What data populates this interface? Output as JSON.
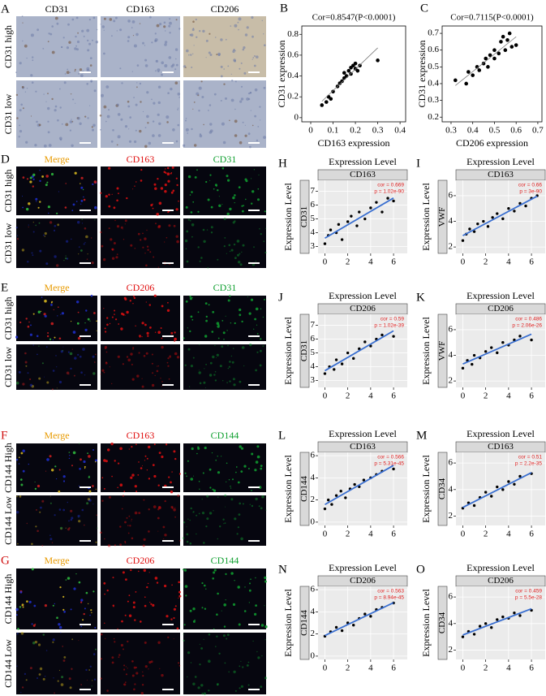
{
  "micrographs": [
    {
      "panel": "A",
      "columns": [
        "CD31",
        "CD163",
        "CD206"
      ],
      "column_colors": [
        "#000000",
        "#000000",
        "#000000"
      ],
      "rows": [
        "CD31 high",
        "CD31 low"
      ]
    },
    {
      "panel": "D",
      "columns": [
        "Merge",
        "CD163",
        "CD31"
      ],
      "column_colors": [
        "#e89a00",
        "#e01010",
        "#10a030"
      ],
      "rows": [
        "CD31 high",
        "CD31 low"
      ]
    },
    {
      "panel": "E",
      "columns": [
        "Merge",
        "CD206",
        "CD31"
      ],
      "column_colors": [
        "#e89a00",
        "#e01010",
        "#10a030"
      ],
      "rows": [
        "CD31 high",
        "CD31 low"
      ]
    },
    {
      "panel": "F",
      "panel_color": "#d01010",
      "columns": [
        "Merge",
        "CD163",
        "CD144"
      ],
      "column_colors": [
        "#e89a00",
        "#e01010",
        "#10a030"
      ],
      "rows": [
        "CD144 High",
        "CD144 Low"
      ]
    },
    {
      "panel": "G",
      "panel_color": "#d01010",
      "columns": [
        "Merge",
        "CD206",
        "CD144"
      ],
      "column_colors": [
        "#e89a00",
        "#e01010",
        "#10a030"
      ],
      "rows": [
        "CD144 High",
        "CD144 Low"
      ]
    }
  ],
  "chart_data": [
    {
      "type": "scatter",
      "panel": "B",
      "title": "Cor=0.8547(P<0.0001)",
      "x_label": "CD163 expression",
      "y_label": "CD31 expression",
      "color": "#000000",
      "x": [
        0.05,
        0.07,
        0.08,
        0.09,
        0.1,
        0.12,
        0.13,
        0.14,
        0.15,
        0.15,
        0.16,
        0.17,
        0.18,
        0.18,
        0.19,
        0.2,
        0.2,
        0.21,
        0.22,
        0.3
      ],
      "values": [
        0.12,
        0.15,
        0.2,
        0.18,
        0.25,
        0.3,
        0.33,
        0.35,
        0.38,
        0.43,
        0.4,
        0.45,
        0.42,
        0.48,
        0.5,
        0.47,
        0.52,
        0.45,
        0.5,
        0.55
      ],
      "xlim": [
        -0.04,
        0.425
      ],
      "xticks": [
        0,
        0.1,
        0.2,
        0.3,
        0.4
      ],
      "ylim": [
        -0.04,
        0.88
      ],
      "yticks": [
        0,
        0.2,
        0.4,
        0.6,
        0.8
      ]
    },
    {
      "type": "scatter",
      "panel": "C",
      "title": "Cor=0.7115(P<0.0001)",
      "x_label": "CD206 expression",
      "y_label": "CD31 expression",
      "color": "#000000",
      "x": [
        0.32,
        0.37,
        0.38,
        0.4,
        0.42,
        0.43,
        0.45,
        0.46,
        0.47,
        0.48,
        0.5,
        0.5,
        0.52,
        0.53,
        0.54,
        0.55,
        0.56,
        0.57,
        0.58,
        0.6
      ],
      "values": [
        0.42,
        0.4,
        0.47,
        0.45,
        0.5,
        0.48,
        0.52,
        0.55,
        0.5,
        0.57,
        0.55,
        0.6,
        0.58,
        0.65,
        0.68,
        0.6,
        0.66,
        0.7,
        0.62,
        0.63
      ],
      "xlim": [
        0.259,
        0.719
      ],
      "xticks": [
        0.3,
        0.4,
        0.5,
        0.6,
        0.7
      ],
      "ylim": [
        0.172,
        0.744
      ],
      "yticks": [
        0.2,
        0.3,
        0.4,
        0.5,
        0.6,
        0.7
      ]
    },
    {
      "type": "scatter",
      "panel": "H",
      "title": "Expression Level",
      "facet": "CD163",
      "y_label": "Expression Level",
      "y_strip": "CD31",
      "annotations": [
        "cor = 0.669",
        "p = 1.02e-90"
      ],
      "color": "#000000",
      "trend_color": "#3a6fd0",
      "x": [
        0,
        0.3,
        0.5,
        1,
        1.2,
        1.5,
        2,
        2.3,
        2.8,
        3,
        3.5,
        4,
        4.5,
        5,
        5.5,
        6
      ],
      "values": [
        3.2,
        3.8,
        4.2,
        4,
        4.6,
        3.5,
        4.8,
        5.2,
        4.5,
        5.5,
        5,
        5.8,
        6.2,
        5.5,
        6.5,
        6.3
      ],
      "xlim": [
        -0.6,
        7.2
      ],
      "xticks": [
        0,
        2,
        4,
        6
      ],
      "ylim": [
        2.5,
        7.8
      ],
      "yticks": [
        3,
        4,
        5,
        6,
        7
      ]
    },
    {
      "type": "scatter",
      "panel": "I",
      "title": "Expression Level",
      "facet": "CD163",
      "y_label": "Expression Level",
      "y_strip": "VWF",
      "annotations": [
        "cor = 0.66",
        "p = 3e-90"
      ],
      "color": "#000000",
      "trend_color": "#3a6fd0",
      "x": [
        0,
        0.3,
        0.6,
        1,
        1.3,
        1.8,
        2.2,
        2.6,
        3,
        3.5,
        4,
        4.5,
        5,
        5.5,
        6,
        6.5
      ],
      "values": [
        2.5,
        3,
        3.4,
        3.2,
        3.8,
        4,
        3.6,
        4.3,
        4.6,
        4.2,
        5,
        4.8,
        5.4,
        5.2,
        5.8,
        6
      ],
      "xlim": [
        -0.6,
        7.2
      ],
      "xticks": [
        0,
        2,
        4,
        6
      ],
      "ylim": [
        1.5,
        7.2
      ],
      "yticks": [
        2,
        4,
        6
      ]
    },
    {
      "type": "scatter",
      "panel": "J",
      "title": "Expression Level",
      "facet": "CD206",
      "y_label": "Expression Level",
      "y_strip": "CD31",
      "annotations": [
        "cor = 0.59",
        "p = 1.02e-39"
      ],
      "color": "#000000",
      "trend_color": "#3a6fd0",
      "x": [
        0,
        0.4,
        0.8,
        1,
        1.5,
        2,
        2.5,
        3,
        3.5,
        4,
        4.5,
        5,
        6
      ],
      "values": [
        3.5,
        4,
        3.8,
        4.5,
        4.2,
        5,
        4.6,
        5.3,
        5.8,
        5.5,
        6,
        6.3,
        6.2
      ],
      "xlim": [
        -0.6,
        7.2
      ],
      "xticks": [
        0,
        2,
        4,
        6
      ],
      "ylim": [
        2.5,
        7.8
      ],
      "yticks": [
        3,
        4,
        5,
        6,
        7
      ]
    },
    {
      "type": "scatter",
      "panel": "K",
      "title": "Expression Level",
      "facet": "CD206",
      "y_label": "Expression Level",
      "y_strip": "VWF",
      "annotations": [
        "cor = 0.486",
        "p = 2.06e-26"
      ],
      "color": "#000000",
      "trend_color": "#3a6fd0",
      "x": [
        0,
        0.4,
        0.8,
        1,
        1.5,
        2,
        2.5,
        3,
        3.5,
        4,
        4.5,
        5,
        6
      ],
      "values": [
        3,
        3.6,
        3.3,
        4,
        3.8,
        4.3,
        4.6,
        4.2,
        5,
        4.8,
        5.2,
        5.5,
        5.2
      ],
      "xlim": [
        -0.6,
        7.2
      ],
      "xticks": [
        0,
        2,
        4,
        6
      ],
      "ylim": [
        1.5,
        7.2
      ],
      "yticks": [
        2,
        4,
        6
      ]
    },
    {
      "type": "scatter",
      "panel": "L",
      "title": "Expression Level",
      "facet": "CD163",
      "y_label": "Expression Level",
      "y_strip": "CD144",
      "annotations": [
        "cor = 0.566",
        "p = 5.31e-45"
      ],
      "color": "#000000",
      "trend_color": "#3a6fd0",
      "x": [
        0,
        0.3,
        0.6,
        1,
        1.4,
        1.8,
        2.2,
        2.6,
        3,
        3.4,
        4,
        4.5,
        5,
        6
      ],
      "values": [
        1.2,
        2,
        1.6,
        2.4,
        2.8,
        2.2,
        3,
        3.4,
        3.2,
        3.8,
        4,
        4.3,
        4.6,
        4.8
      ],
      "xlim": [
        -0.6,
        7.2
      ],
      "xticks": [
        0,
        2,
        4,
        6
      ],
      "ylim": [
        -0.3,
        6.3
      ],
      "yticks": [
        0,
        2,
        4,
        6
      ]
    },
    {
      "type": "scatter",
      "panel": "M",
      "title": "Expression Level",
      "facet": "CD163",
      "y_label": "Expression Level",
      "y_strip": "CD34",
      "annotations": [
        "cor = 0.51",
        "p = 2.2e-35"
      ],
      "color": "#000000",
      "trend_color": "#3a6fd0",
      "x": [
        0,
        0.5,
        1,
        1.5,
        2,
        2.5,
        3,
        3.5,
        4,
        4.5,
        5,
        6
      ],
      "values": [
        2.6,
        3,
        2.8,
        3.4,
        3.8,
        3.5,
        4.2,
        4,
        4.6,
        4.4,
        5,
        5.2
      ],
      "xlim": [
        -0.6,
        7.2
      ],
      "xticks": [
        0,
        2,
        4,
        6
      ],
      "ylim": [
        1.3,
        6.8
      ],
      "yticks": [
        2,
        4,
        6
      ]
    },
    {
      "type": "scatter",
      "panel": "N",
      "title": "Expression Level",
      "facet": "CD206",
      "y_label": "Expression Level",
      "y_strip": "CD144",
      "annotations": [
        "cor = 0.563",
        "p = 8.94e-45"
      ],
      "color": "#000000",
      "trend_color": "#3a6fd0",
      "x": [
        0,
        0.5,
        1,
        1.5,
        2,
        2.5,
        3,
        3.5,
        4,
        4.5,
        5,
        6
      ],
      "values": [
        1.8,
        2.2,
        2.6,
        2.3,
        3,
        2.8,
        3.4,
        3.8,
        3.6,
        4.2,
        4.4,
        4.8
      ],
      "xlim": [
        -0.6,
        7.2
      ],
      "xticks": [
        0,
        2,
        4,
        6
      ],
      "ylim": [
        -0.3,
        6.3
      ],
      "yticks": [
        0,
        2,
        4,
        6
      ]
    },
    {
      "type": "scatter",
      "panel": "O",
      "title": "Expression Level",
      "facet": "CD206",
      "y_label": "Expression Level",
      "y_strip": "CD34",
      "annotations": [
        "cor = 0.459",
        "p = 5.5e-28"
      ],
      "color": "#000000",
      "trend_color": "#3a6fd0",
      "x": [
        0,
        0.5,
        1,
        1.5,
        2,
        2.5,
        3,
        3.5,
        4,
        4.5,
        5,
        6
      ],
      "values": [
        3,
        3.4,
        3.2,
        3.8,
        4,
        3.7,
        4.3,
        4.5,
        4.4,
        4.8,
        4.6,
        5
      ],
      "xlim": [
        -0.6,
        7.2
      ],
      "xticks": [
        0,
        2,
        4,
        6
      ],
      "ylim": [
        1.3,
        6.8
      ],
      "yticks": [
        2,
        4,
        6
      ]
    }
  ]
}
